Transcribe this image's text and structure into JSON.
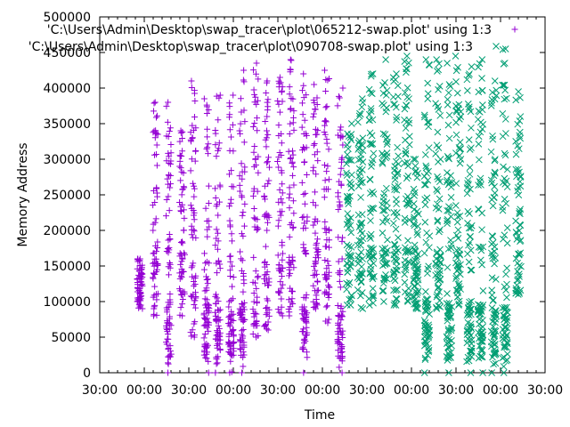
{
  "chart_data": {
    "type": "scatter",
    "xlabel": "Time",
    "ylabel": "Memory Address",
    "ylim": [
      0,
      500000
    ],
    "yticks": [
      0,
      50000,
      100000,
      150000,
      200000,
      250000,
      300000,
      350000,
      400000,
      450000,
      500000
    ],
    "ytick_labels": [
      "0",
      "50000",
      "100000",
      "150000",
      "200000",
      "250000",
      "300000",
      "350000",
      "400000",
      "450000",
      "500000"
    ],
    "xlim": [
      0,
      10
    ],
    "xticks": [
      0,
      1,
      2,
      3,
      4,
      5,
      6,
      7,
      8,
      9,
      10
    ],
    "xtick_labels": [
      "30:00",
      "00:00",
      "30:00",
      "00:00",
      "30:00",
      "00:00",
      "30:00",
      "00:00",
      "30:00",
      "00:00",
      "30:00"
    ],
    "legend_position": "top-right",
    "series": [
      {
        "name": "'C:\\Users\\Admin\\Desktop\\swap_tracer\\plot\\065212-swap.plot' using 1:3",
        "marker": "plus",
        "color": "#9400d3",
        "columns": [
          {
            "x": 0.9,
            "low": 90000,
            "high": 160000
          },
          {
            "x": 1.25,
            "low": 80000,
            "high": 380000
          },
          {
            "x": 1.55,
            "low": 0,
            "high": 380000
          },
          {
            "x": 1.85,
            "low": 80000,
            "high": 340000
          },
          {
            "x": 2.1,
            "low": 50000,
            "high": 410000
          },
          {
            "x": 2.4,
            "low": 0,
            "high": 385000
          },
          {
            "x": 2.65,
            "low": 0,
            "high": 390000
          },
          {
            "x": 2.95,
            "low": 0,
            "high": 390000
          },
          {
            "x": 3.2,
            "low": 0,
            "high": 425000
          },
          {
            "x": 3.5,
            "low": 50000,
            "high": 435000
          },
          {
            "x": 3.75,
            "low": 60000,
            "high": 410000
          },
          {
            "x": 4.05,
            "low": 80000,
            "high": 415000
          },
          {
            "x": 4.3,
            "low": 80000,
            "high": 440000
          },
          {
            "x": 4.6,
            "low": 0,
            "high": 420000
          },
          {
            "x": 4.85,
            "low": 90000,
            "high": 405000
          },
          {
            "x": 5.1,
            "low": 70000,
            "high": 425000
          },
          {
            "x": 5.4,
            "low": 0,
            "high": 400000
          }
        ]
      },
      {
        "name": "'C:\\Users\\Admin\\Desktop\\swap_tracer\\plot\\090708-swap.plot' using 1:3",
        "marker": "cross",
        "color": "#009e73",
        "columns": [
          {
            "x": 5.6,
            "low": 95000,
            "high": 350000
          },
          {
            "x": 5.85,
            "low": 90000,
            "high": 385000
          },
          {
            "x": 6.1,
            "low": 95000,
            "high": 420000
          },
          {
            "x": 6.4,
            "low": 100000,
            "high": 440000
          },
          {
            "x": 6.65,
            "low": 95000,
            "high": 420000
          },
          {
            "x": 6.9,
            "low": 100000,
            "high": 445000
          },
          {
            "x": 7.1,
            "low": 90000,
            "high": 300000
          },
          {
            "x": 7.35,
            "low": 0,
            "high": 440000
          },
          {
            "x": 7.6,
            "low": 90000,
            "high": 440000
          },
          {
            "x": 7.85,
            "low": 0,
            "high": 435000
          },
          {
            "x": 8.05,
            "low": 95000,
            "high": 445000
          },
          {
            "x": 8.3,
            "low": 0,
            "high": 430000
          },
          {
            "x": 8.55,
            "low": 0,
            "high": 440000
          },
          {
            "x": 8.85,
            "low": 0,
            "high": 410000
          },
          {
            "x": 9.1,
            "low": 0,
            "high": 455000
          },
          {
            "x": 9.4,
            "low": 110000,
            "high": 395000
          }
        ]
      }
    ]
  }
}
